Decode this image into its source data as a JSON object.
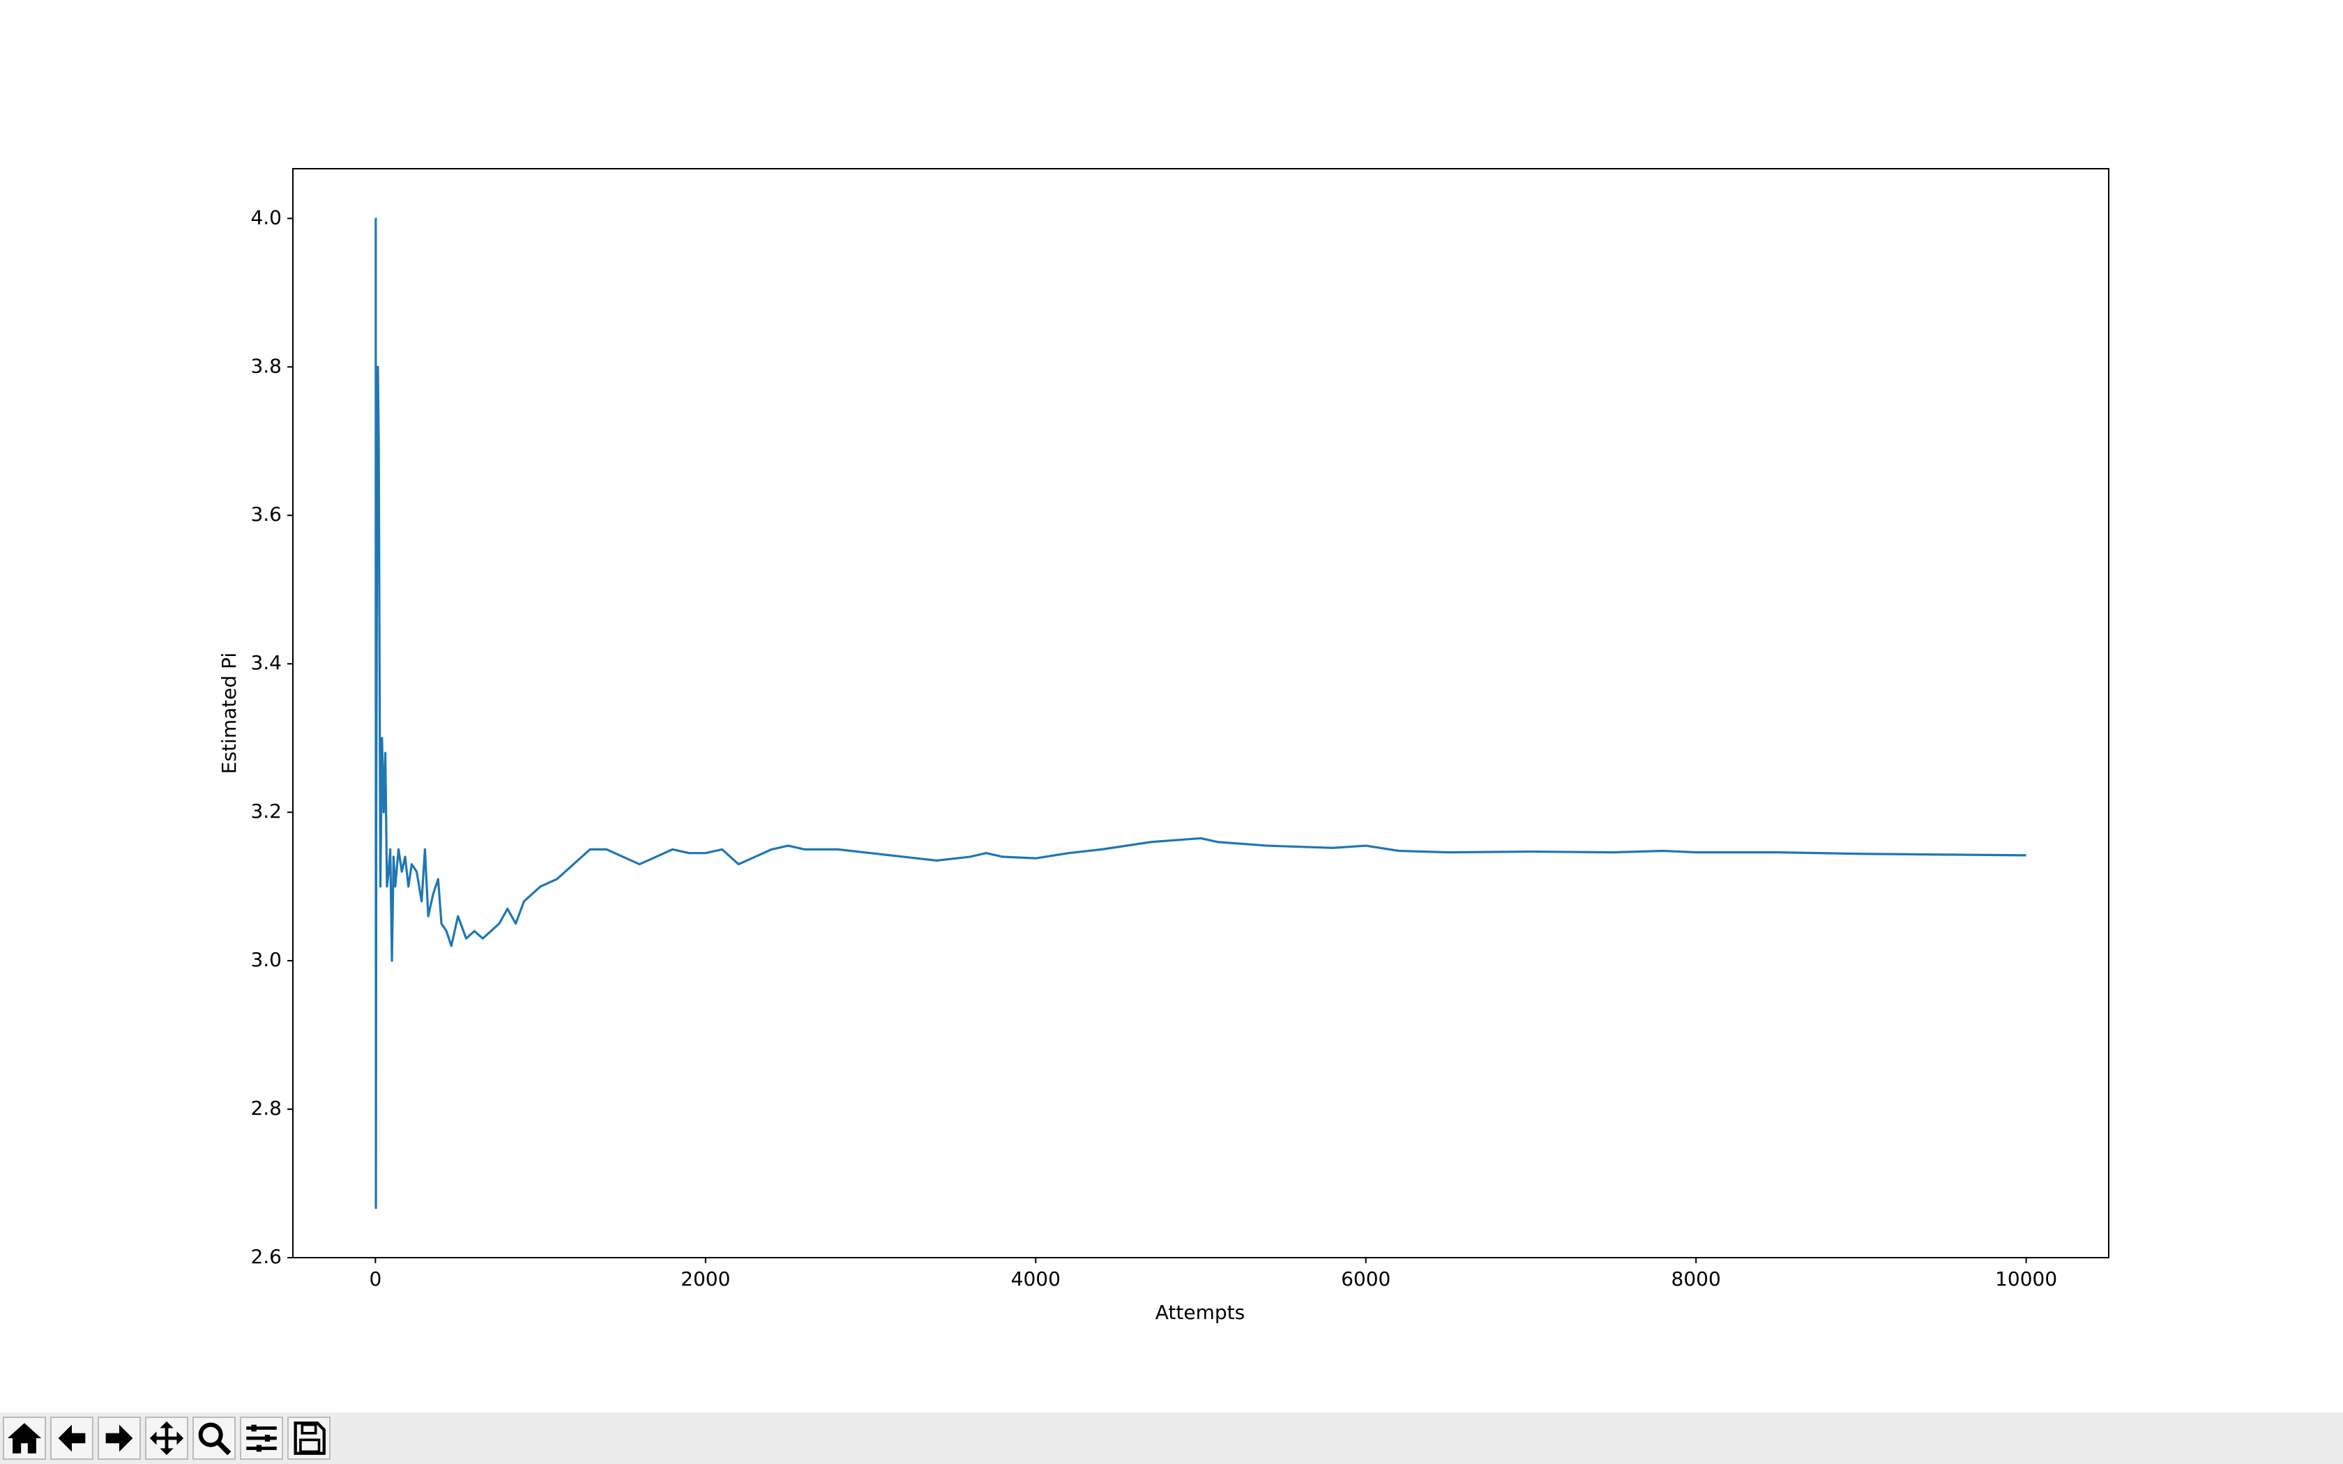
{
  "chart_data": {
    "type": "line",
    "xlabel": "Attempts",
    "ylabel": "Estimated Pi",
    "x": [
      1,
      2,
      3,
      5,
      10,
      15,
      20,
      25,
      30,
      40,
      50,
      60,
      70,
      80,
      90,
      100,
      110,
      120,
      140,
      160,
      180,
      200,
      220,
      250,
      280,
      300,
      320,
      350,
      380,
      400,
      430,
      460,
      500,
      550,
      600,
      650,
      700,
      750,
      800,
      850,
      900,
      1000,
      1100,
      1200,
      1300,
      1400,
      1500,
      1600,
      1700,
      1800,
      1900,
      2000,
      2100,
      2200,
      2300,
      2400,
      2500,
      2600,
      2800,
      3000,
      3200,
      3400,
      3600,
      3700,
      3800,
      4000,
      4200,
      4400,
      4700,
      5000,
      5100,
      5400,
      5800,
      6000,
      6200,
      6500,
      7000,
      7500,
      7800,
      8000,
      8500,
      9000,
      9500,
      10000
    ],
    "series": [
      {
        "color": "#1f77b4",
        "values": [
          4.0,
          4.0,
          2.667,
          3.2,
          3.6,
          3.8,
          3.7,
          3.4,
          3.1,
          3.3,
          3.2,
          3.28,
          3.1,
          3.12,
          3.15,
          3.0,
          3.14,
          3.1,
          3.15,
          3.12,
          3.14,
          3.1,
          3.13,
          3.12,
          3.08,
          3.15,
          3.06,
          3.09,
          3.11,
          3.05,
          3.04,
          3.02,
          3.06,
          3.03,
          3.04,
          3.03,
          3.04,
          3.05,
          3.07,
          3.05,
          3.08,
          3.1,
          3.11,
          3.13,
          3.15,
          3.15,
          3.14,
          3.13,
          3.14,
          3.15,
          3.145,
          3.145,
          3.15,
          3.13,
          3.14,
          3.15,
          3.155,
          3.15,
          3.15,
          3.145,
          3.14,
          3.135,
          3.14,
          3.145,
          3.14,
          3.138,
          3.145,
          3.15,
          3.16,
          3.165,
          3.16,
          3.155,
          3.152,
          3.155,
          3.148,
          3.146,
          3.147,
          3.146,
          3.148,
          3.146,
          3.146,
          3.144,
          3.143,
          3.142
        ]
      }
    ],
    "xlim": [
      -500,
      10500
    ],
    "ylim": [
      2.6,
      4.067
    ],
    "xticks": [
      0,
      2000,
      4000,
      6000,
      8000,
      10000
    ],
    "yticks": [
      2.6,
      2.8,
      {
        "value": 3.0,
        "label": "3.0"
      },
      3.2,
      3.4,
      3.6,
      3.8,
      {
        "value": 4.0,
        "label": "4.0"
      }
    ],
    "grid": false
  }
}
